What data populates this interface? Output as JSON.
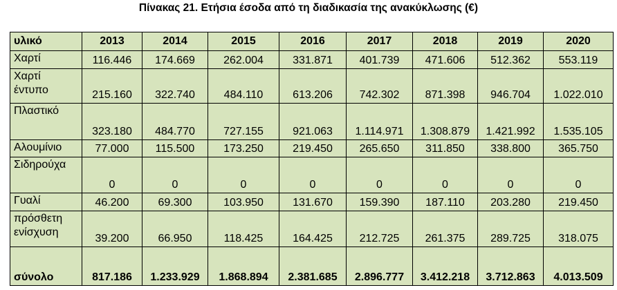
{
  "title": "Πίνακας 21. Ετήσια έσοδα από τη διαδικασία της ανακύκλωσης (€)",
  "table": {
    "header": [
      "υλικό",
      "2013",
      "2014",
      "2015",
      "2016",
      "2017",
      "2018",
      "2019",
      "2020"
    ],
    "rows": [
      [
        "Χαρτί",
        "116.446",
        "174.669",
        "262.004",
        "331.871",
        "401.739",
        "471.606",
        "512.362",
        "553.119"
      ],
      [
        "Χαρτί έντυπο",
        "215.160",
        "322.740",
        "484.110",
        "613.206",
        "742.302",
        "871.398",
        "946.704",
        "1.022.010"
      ],
      [
        "Πλαστικό",
        "323.180",
        "484.770",
        "727.155",
        "921.063",
        "1.114.971",
        "1.308.879",
        "1.421.992",
        "1.535.105"
      ],
      [
        "Αλουμίνιο",
        "77.000",
        "115.500",
        "173.250",
        "219.450",
        "265.650",
        "311.850",
        "338.800",
        "365.750"
      ],
      [
        "Σιδηρούχα",
        "0",
        "0",
        "0",
        "0",
        "0",
        "0",
        "0",
        "0"
      ],
      [
        "Γυαλί",
        "46.200",
        "69.300",
        "103.950",
        "131.670",
        "159.390",
        "187.110",
        "203.280",
        "219.450"
      ],
      [
        "πρόσθετη ενίσχυση",
        "39.200",
        "66.950",
        "118.425",
        "164.425",
        "212.725",
        "261.375",
        "289.725",
        "318.075"
      ],
      [
        "σύνολο",
        "817.186",
        "1.233.929",
        "1.868.894",
        "2.381.685",
        "2.896.777",
        "3.412.218",
        "3.712.863",
        "4.013.509"
      ]
    ]
  }
}
